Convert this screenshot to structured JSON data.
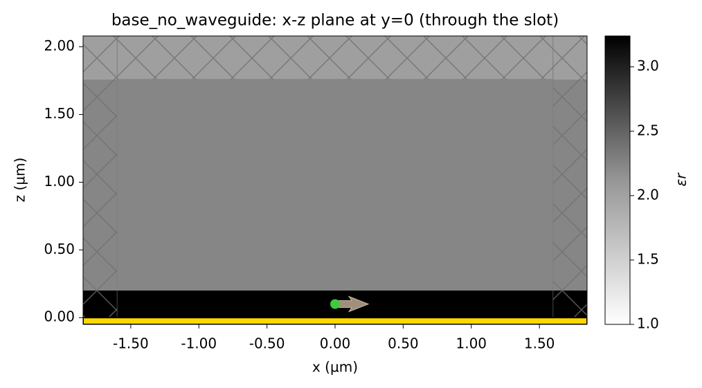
{
  "chart_data": {
    "type": "structure",
    "title": "base_no_waveguide: x-z plane at y=0 (through the slot)",
    "x_label": "x (µm)",
    "y_label": "z (µm)",
    "colorbar_label": "εr",
    "xlim": [
      -1.85,
      1.85
    ],
    "ylim": [
      -0.05,
      2.08
    ],
    "xticks": [
      {
        "value": -1.5,
        "label": "-1.50"
      },
      {
        "value": -1,
        "label": "-1.00"
      },
      {
        "value": -0.5,
        "label": "-0.50"
      },
      {
        "value": 0,
        "label": "0.00"
      },
      {
        "value": 0.5,
        "label": "0.50"
      },
      {
        "value": 1,
        "label": "1.00"
      },
      {
        "value": 1.5,
        "label": "1.50"
      }
    ],
    "yticks": [
      {
        "value": 0,
        "label": "0.00"
      },
      {
        "value": 0.5,
        "label": "0.50"
      },
      {
        "value": 1,
        "label": "1.00"
      },
      {
        "value": 1.5,
        "label": "1.50"
      },
      {
        "value": 2,
        "label": "2.00"
      }
    ],
    "clim": [
      1,
      3.24
    ],
    "cticks": [
      {
        "value": 1,
        "label": "1.0"
      },
      1.5,
      {
        "value": 2,
        "label": "2.0"
      },
      2.5,
      {
        "value": 3,
        "label": "3.0"
      }
    ],
    "regions": [
      {
        "x": [
          -1.85,
          1.85
        ],
        "z": [
          0.2,
          1.76
        ],
        "value": 2.06
      },
      {
        "x": [
          -1.85,
          1.85
        ],
        "z": [
          1.76,
          2.08
        ],
        "value": 1.84
      },
      {
        "x": [
          -1.85,
          1.85
        ],
        "z": [
          0,
          0.2
        ],
        "value": 3.24
      }
    ],
    "pec_region": {
      "x": [
        -1.85,
        1.85
      ],
      "z": [
        -0.05,
        0
      ],
      "color": "#ffd700"
    },
    "pml_regions": [
      {
        "x": [
          -1.85,
          -1.6
        ],
        "z": [
          -0.05,
          2.08
        ]
      },
      {
        "x": [
          1.6,
          1.85
        ],
        "z": [
          -0.05,
          2.08
        ]
      },
      {
        "x": [
          -1.6,
          1.6
        ],
        "z": [
          1.76,
          2.08
        ]
      }
    ],
    "source": {
      "x": 0,
      "z": 0.1,
      "color": "#3ec93e"
    }
  }
}
